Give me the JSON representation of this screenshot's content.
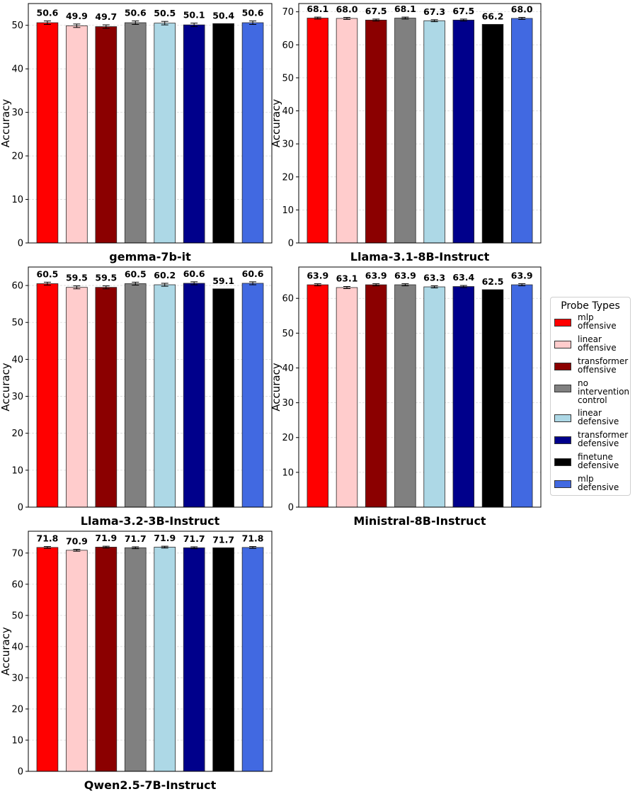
{
  "chart_data": [
    {
      "type": "bar",
      "title": "gemma-7b-it",
      "ylabel": "Accuracy",
      "ylim": [
        0,
        55
      ],
      "yticks": [
        0,
        10,
        20,
        30,
        40,
        50
      ],
      "categories": [
        "mlp offensive",
        "linear offensive",
        "transformer offensive",
        "no intervention control",
        "linear defensive",
        "transformer defensive",
        "finetune defensive",
        "mlp defensive"
      ],
      "values": [
        50.6,
        49.9,
        49.7,
        50.6,
        50.5,
        50.1,
        50.4,
        50.6
      ],
      "errors": [
        0.4,
        0.4,
        0.4,
        0.4,
        0.4,
        0.4,
        0.0,
        0.4
      ],
      "value_labels": [
        "50.6",
        "49.9",
        "49.7",
        "50.6",
        "50.5",
        "50.1",
        "50.4",
        "50.6"
      ]
    },
    {
      "type": "bar",
      "title": "Llama-3.1-8B-Instruct",
      "ylabel": "Accuracy",
      "ylim": [
        0,
        72.5
      ],
      "yticks": [
        0,
        10,
        20,
        30,
        40,
        50,
        60,
        70
      ],
      "categories": [
        "mlp offensive",
        "linear offensive",
        "transformer offensive",
        "no intervention control",
        "linear defensive",
        "transformer defensive",
        "finetune defensive",
        "mlp defensive"
      ],
      "values": [
        68.1,
        68.0,
        67.5,
        68.1,
        67.3,
        67.5,
        66.2,
        68.0
      ],
      "errors": [
        0.3,
        0.3,
        0.3,
        0.3,
        0.3,
        0.3,
        0.0,
        0.3
      ],
      "value_labels": [
        "68.1",
        "68.0",
        "67.5",
        "68.1",
        "67.3",
        "67.5",
        "66.2",
        "68.0"
      ]
    },
    {
      "type": "bar",
      "title": "Llama-3.2-3B-Instruct",
      "ylabel": "Accuracy",
      "ylim": [
        0,
        65
      ],
      "yticks": [
        0,
        10,
        20,
        30,
        40,
        50,
        60
      ],
      "categories": [
        "mlp offensive",
        "linear offensive",
        "transformer offensive",
        "no intervention control",
        "linear defensive",
        "transformer defensive",
        "finetune defensive",
        "mlp defensive"
      ],
      "values": [
        60.5,
        59.5,
        59.5,
        60.5,
        60.2,
        60.6,
        59.1,
        60.6
      ],
      "errors": [
        0.4,
        0.4,
        0.4,
        0.4,
        0.4,
        0.4,
        0.0,
        0.4
      ],
      "value_labels": [
        "60.5",
        "59.5",
        "59.5",
        "60.5",
        "60.2",
        "60.6",
        "59.1",
        "60.6"
      ]
    },
    {
      "type": "bar",
      "title": "Ministral-8B-Instruct",
      "ylabel": "Accuracy",
      "ylim": [
        0,
        69
      ],
      "yticks": [
        0,
        10,
        20,
        30,
        40,
        50,
        60
      ],
      "categories": [
        "mlp offensive",
        "linear offensive",
        "transformer offensive",
        "no intervention control",
        "linear defensive",
        "transformer defensive",
        "finetune defensive",
        "mlp defensive"
      ],
      "values": [
        63.9,
        63.1,
        63.9,
        63.9,
        63.3,
        63.4,
        62.5,
        63.9
      ],
      "errors": [
        0.3,
        0.3,
        0.3,
        0.3,
        0.3,
        0.3,
        0.0,
        0.3
      ],
      "value_labels": [
        "63.9",
        "63.1",
        "63.9",
        "63.9",
        "63.3",
        "63.4",
        "62.5",
        "63.9"
      ]
    },
    {
      "type": "bar",
      "title": "Qwen2.5-7B-Instruct",
      "ylabel": "Accuracy",
      "ylim": [
        0,
        77
      ],
      "yticks": [
        0,
        10,
        20,
        30,
        40,
        50,
        60,
        70
      ],
      "categories": [
        "mlp offensive",
        "linear offensive",
        "transformer offensive",
        "no intervention control",
        "linear defensive",
        "transformer defensive",
        "finetune defensive",
        "mlp defensive"
      ],
      "values": [
        71.8,
        70.9,
        71.9,
        71.7,
        71.9,
        71.7,
        71.7,
        71.8
      ],
      "errors": [
        0.3,
        0.3,
        0.3,
        0.3,
        0.3,
        0.3,
        0.0,
        0.3
      ],
      "value_labels": [
        "71.8",
        "70.9",
        "71.9",
        "71.7",
        "71.9",
        "71.7",
        "71.7",
        "71.8"
      ]
    }
  ],
  "legend": {
    "title": "Probe Types",
    "items": [
      {
        "label": "mlp\noffensive",
        "color": "#ff0000"
      },
      {
        "label": "linear\noffensive",
        "color": "#ffcccc"
      },
      {
        "label": "transformer\noffensive",
        "color": "#8b0000"
      },
      {
        "label": "no\nintervention\ncontrol",
        "color": "#808080"
      },
      {
        "label": "linear\ndefensive",
        "color": "#add8e6"
      },
      {
        "label": "transformer\ndefensive",
        "color": "#00008b"
      },
      {
        "label": "finetune\ndefensive",
        "color": "#000000"
      },
      {
        "label": "mlp\ndefensive",
        "color": "#4169e1"
      }
    ]
  }
}
